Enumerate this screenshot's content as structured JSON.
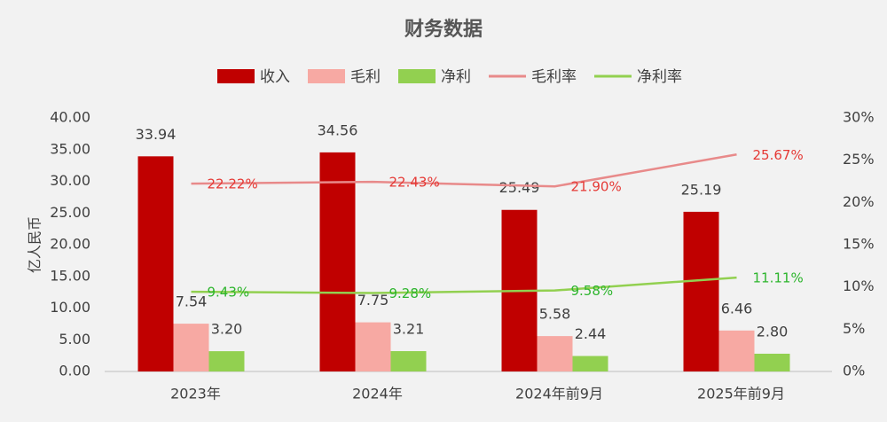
{
  "chart_data": {
    "type": "bar-line",
    "title": "财务数据",
    "y_label": "亿人民币",
    "categories": [
      "2023年",
      "2024年",
      "2024年前9月",
      "2025年前9月"
    ],
    "series": [
      {
        "name": "收入",
        "type": "bar",
        "color": "#c00000",
        "values": [
          33.94,
          34.56,
          25.49,
          25.19
        ],
        "value_labels": [
          "33.94",
          "34.56",
          "25.49",
          "25.19"
        ]
      },
      {
        "name": "毛利",
        "type": "bar",
        "color": "#f7a9a3",
        "values": [
          7.54,
          7.75,
          5.58,
          6.46
        ],
        "value_labels": [
          "7.54",
          "7.75",
          "5.58",
          "6.46"
        ]
      },
      {
        "name": "净利",
        "type": "bar",
        "color": "#92d050",
        "values": [
          3.2,
          3.21,
          2.44,
          2.8
        ],
        "value_labels": [
          "3.20",
          "3.21",
          "2.44",
          "2.80"
        ]
      },
      {
        "name": "毛利率",
        "type": "line",
        "axis": "y2",
        "color": "#e88a8a",
        "label_color": "#e53935",
        "values": [
          22.22,
          22.43,
          21.9,
          25.67
        ],
        "value_labels": [
          "22.22%",
          "22.43%",
          "21.90%",
          "25.67%"
        ]
      },
      {
        "name": "净利率",
        "type": "line",
        "axis": "y2",
        "color": "#92d050",
        "label_color": "#2db52d",
        "values": [
          9.43,
          9.28,
          9.58,
          11.11
        ],
        "value_labels": [
          "9.43%",
          "9.28%",
          "9.58%",
          "11.11%"
        ]
      }
    ],
    "ylim": [
      0,
      40
    ],
    "yticks": [
      {
        "value": 0,
        "label": "0.00"
      },
      {
        "value": 5,
        "label": "5.00"
      },
      {
        "value": 10,
        "label": "10.00"
      },
      {
        "value": 15,
        "label": "15.00"
      },
      {
        "value": 20,
        "label": "20.00"
      },
      {
        "value": 25,
        "label": "25.00"
      },
      {
        "value": 30,
        "label": "30.00"
      },
      {
        "value": 35,
        "label": "35.00"
      },
      {
        "value": 40,
        "label": "40.00"
      }
    ],
    "y2lim": [
      0,
      30
    ],
    "y2ticks": [
      {
        "value": 0,
        "label": "0%"
      },
      {
        "value": 5,
        "label": "5%"
      },
      {
        "value": 10,
        "label": "10%"
      },
      {
        "value": 15,
        "label": "15%"
      },
      {
        "value": 20,
        "label": "20%"
      },
      {
        "value": 25,
        "label": "25%"
      },
      {
        "value": 30,
        "label": "30%"
      }
    ],
    "grid": false,
    "legend": "top"
  }
}
